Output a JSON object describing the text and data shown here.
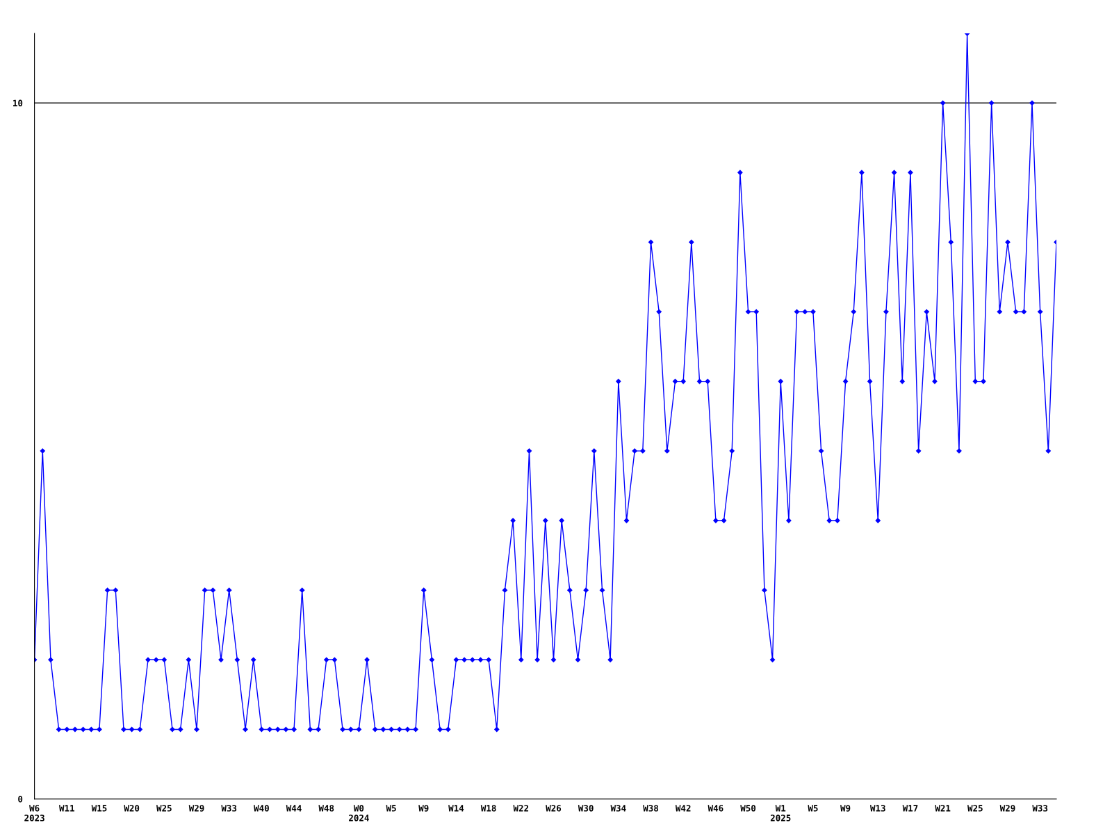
{
  "chart_data": {
    "type": "line",
    "categories": [
      "W6\n2023",
      null,
      null,
      null,
      "W11",
      null,
      null,
      null,
      "W15",
      null,
      null,
      null,
      "W20",
      null,
      null,
      null,
      "W25",
      null,
      null,
      null,
      "W29",
      null,
      null,
      null,
      "W33",
      null,
      null,
      null,
      "W40",
      null,
      null,
      null,
      "W44",
      null,
      null,
      null,
      "W48",
      null,
      null,
      null,
      "W0\n2024",
      null,
      null,
      null,
      "W5",
      null,
      null,
      null,
      "W9",
      null,
      null,
      null,
      "W14",
      null,
      null,
      null,
      "W18",
      null,
      null,
      null,
      "W22",
      null,
      null,
      null,
      "W26",
      null,
      null,
      null,
      "W30",
      null,
      null,
      null,
      "W34",
      null,
      null,
      null,
      "W38",
      null,
      null,
      null,
      "W42",
      null,
      null,
      null,
      "W46",
      null,
      null,
      null,
      "W50",
      null,
      null,
      null,
      "W1\n2025",
      null,
      null,
      null,
      "W5",
      null,
      null,
      null,
      "W9",
      null,
      null,
      null,
      "W13",
      null,
      null,
      null,
      "W17",
      null,
      null,
      null,
      "W21",
      null,
      null,
      null,
      "W25",
      null,
      null,
      null,
      "W29",
      null,
      null,
      null,
      "W33",
      null,
      null
    ],
    "series": [
      {
        "color": "#0000ff",
        "values": [
          2,
          5,
          2,
          1,
          1,
          1,
          1,
          1,
          1,
          3,
          3,
          1,
          1,
          1,
          2,
          2,
          2,
          1,
          1,
          2,
          1,
          3,
          3,
          2,
          3,
          2,
          1,
          2,
          1,
          1,
          1,
          1,
          1,
          3,
          1,
          1,
          2,
          2,
          1,
          1,
          1,
          2,
          1,
          1,
          1,
          1,
          1,
          1,
          3,
          2,
          1,
          1,
          2,
          2,
          2,
          2,
          2,
          1,
          3,
          4,
          2,
          5,
          2,
          4,
          2,
          4,
          3,
          2,
          3,
          5,
          3,
          2,
          6,
          4,
          5,
          5,
          8,
          7,
          5,
          6,
          6,
          8,
          6,
          6,
          4,
          4,
          5,
          9,
          7,
          7,
          3,
          2,
          6,
          4,
          7,
          7,
          7,
          5,
          4,
          4,
          6,
          7,
          9,
          6,
          4,
          7,
          9,
          6,
          9,
          5,
          7,
          6,
          10,
          8,
          5,
          11,
          6,
          6,
          10,
          7,
          8,
          7,
          7,
          10,
          7,
          5,
          8
        ]
      }
    ],
    "ylim": [
      0,
      11
    ],
    "yticks": [
      0,
      10
    ],
    "grid": "y",
    "marker": "diamond",
    "line_style": "solid"
  }
}
